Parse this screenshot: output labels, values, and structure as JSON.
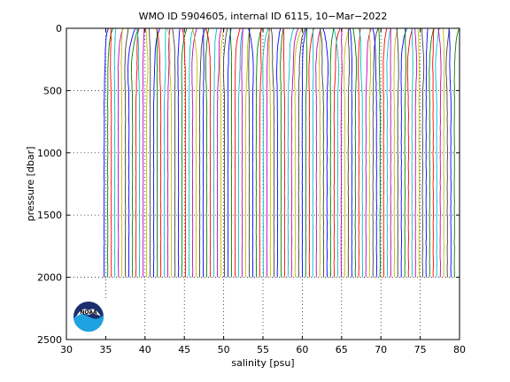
{
  "chart_data": {
    "type": "line",
    "title": "WMO ID 5904605, internal ID 6115, 10−Mar−2022",
    "xlabel": "salinity [psu]",
    "ylabel": "pressure [dbar]",
    "xlim": [
      30,
      80
    ],
    "ylim": [
      0,
      2500
    ],
    "y_reversed": true,
    "xticks": [
      "30",
      "35",
      "40",
      "45",
      "50",
      "55",
      "60",
      "65",
      "70",
      "75",
      "80"
    ],
    "yticks": [
      "0",
      "500",
      "1000",
      "1500",
      "2000",
      "2500"
    ],
    "grid": "dotted",
    "profile_count": 100,
    "profile_first_base_salinity": 34.8,
    "profile_step_psu": 0.45,
    "profile_max_pressure": 2000,
    "colors": [
      "#0000ff",
      "#008000",
      "#ff0000",
      "#00bfbf",
      "#bf00bf",
      "#bfbf00",
      "#404040"
    ]
  },
  "logo": {
    "text": "NOAA",
    "colors": {
      "navy": "#1b2f6e",
      "sky": "#1fa3e0",
      "white": "#ffffff"
    }
  }
}
